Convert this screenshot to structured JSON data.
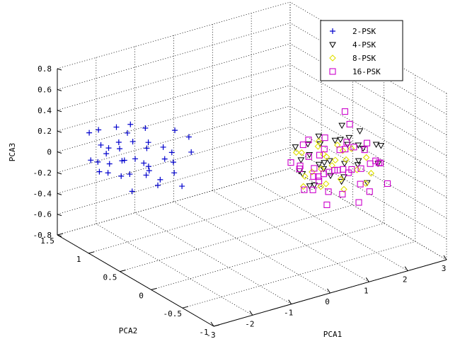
{
  "chart_data": {
    "type": "scatter",
    "projection": "3d",
    "title": "",
    "xlabel": "PCA1",
    "ylabel": "PCA2",
    "zlabel": "PCA3",
    "xlim": [
      -3,
      3
    ],
    "ylim": [
      -1,
      1.5
    ],
    "zlim": [
      -0.8,
      0.8
    ],
    "xticks": [
      "-3",
      "-2",
      "-1",
      "0",
      "1",
      "2",
      "3"
    ],
    "yticks": [
      "-1",
      "-0.5",
      "0",
      "0.5",
      "1",
      "1.5"
    ],
    "zticks": [
      "-0.8",
      "-0.6",
      "-0.4",
      "-0.2",
      "0",
      "0.2",
      "0.4",
      "0.6",
      "0.8"
    ],
    "grid": true,
    "legend_position": "top-right",
    "series": [
      {
        "name": "2-PSK",
        "marker": "plus",
        "color": "#0000cc",
        "points": [
          [
            -2.2,
            1.3,
            0.05
          ],
          [
            -2.0,
            1.3,
            0.0
          ],
          [
            -2.3,
            1.1,
            -0.05
          ],
          [
            -1.9,
            1.2,
            0.08
          ],
          [
            -2.1,
            0.9,
            -0.1
          ],
          [
            -1.8,
            1.0,
            -0.02
          ],
          [
            -2.4,
            1.2,
            -0.15
          ],
          [
            -2.2,
            1.0,
            0.12
          ],
          [
            -2.0,
            1.1,
            -0.2
          ],
          [
            -1.7,
            1.1,
            0.1
          ],
          [
            -2.5,
            1.0,
            -0.08
          ],
          [
            -1.9,
            0.8,
            0.02
          ],
          [
            -2.1,
            1.4,
            0.15
          ],
          [
            -1.6,
            0.9,
            -0.12
          ],
          [
            -2.3,
            0.9,
            0.05
          ],
          [
            -1.8,
            1.3,
            0.18
          ],
          [
            -2.0,
            0.7,
            -0.05
          ],
          [
            -1.5,
            1.0,
            0.05
          ],
          [
            -2.6,
            1.1,
            0.0
          ],
          [
            -1.7,
            0.7,
            -0.18
          ],
          [
            -1.4,
            0.8,
            0.12
          ],
          [
            -2.2,
            0.8,
            -0.22
          ],
          [
            -1.9,
            1.4,
            -0.1
          ],
          [
            -2.4,
            0.8,
            0.1
          ],
          [
            -1.6,
            1.2,
            0.22
          ],
          [
            -1.3,
            0.7,
            0.0
          ],
          [
            -2.1,
            0.6,
            0.08
          ],
          [
            -1.8,
            0.6,
            -0.08
          ],
          [
            -1.5,
            0.6,
            0.15
          ],
          [
            -2.5,
            1.3,
            0.2
          ],
          [
            -1.2,
            0.9,
            -0.05
          ],
          [
            -1.4,
            0.5,
            -0.15
          ],
          [
            -1.0,
            0.6,
            0.1
          ],
          [
            -1.1,
            0.8,
            0.25
          ],
          [
            -2.3,
            1.4,
            -0.12
          ],
          [
            -1.7,
            0.9,
            0.3
          ],
          [
            -0.9,
            0.7,
            0.2
          ],
          [
            -1.3,
            1.1,
            0.05
          ],
          [
            -2.0,
            1.0,
            0.25
          ],
          [
            -1.6,
            0.5,
            0.0
          ]
        ]
      },
      {
        "name": "4-PSK",
        "marker": "triangle-down",
        "color": "#000000",
        "points": [
          [
            1.0,
            -0.2,
            0.05
          ],
          [
            1.3,
            -0.1,
            0.0
          ],
          [
            1.6,
            0.0,
            -0.05
          ],
          [
            1.9,
            0.1,
            0.08
          ],
          [
            2.2,
            0.2,
            0.02
          ],
          [
            2.5,
            0.1,
            -0.03
          ],
          [
            0.8,
            -0.4,
            0.1
          ],
          [
            1.5,
            -0.3,
            0.04
          ],
          [
            2.0,
            -0.2,
            -0.06
          ],
          [
            1.2,
            0.1,
            0.12
          ],
          [
            1.8,
            0.3,
            0.06
          ],
          [
            2.4,
            0.3,
            0.1
          ],
          [
            0.6,
            -0.3,
            -0.08
          ],
          [
            1.1,
            -0.5,
            -0.02
          ],
          [
            1.7,
            -0.4,
            0.08
          ],
          [
            2.3,
            -0.1,
            0.03
          ],
          [
            0.9,
            0.0,
            -0.1
          ],
          [
            1.4,
            0.2,
            -0.04
          ],
          [
            2.1,
            0.0,
            0.12
          ],
          [
            2.7,
            0.2,
            0.05
          ],
          [
            0.4,
            -0.5,
            0.02
          ],
          [
            1.0,
            -0.6,
            0.07
          ],
          [
            1.6,
            -0.6,
            -0.05
          ],
          [
            2.2,
            -0.4,
            0.0
          ],
          [
            2.6,
            -0.2,
            0.06
          ],
          [
            0.7,
            -0.1,
            0.09
          ],
          [
            1.3,
            -0.2,
            -0.09
          ],
          [
            1.9,
            -0.1,
            0.11
          ],
          [
            2.8,
            0.0,
            -0.02
          ],
          [
            0.5,
            -0.2,
            0.04
          ],
          [
            2.0,
            0.4,
            -0.07
          ],
          [
            1.2,
            0.3,
            0.02
          ]
        ]
      },
      {
        "name": "8-PSK",
        "marker": "diamond",
        "color": "#e0e000",
        "points": [
          [
            0.9,
            -0.3,
            0.05
          ],
          [
            1.2,
            -0.2,
            0.1
          ],
          [
            1.5,
            -0.1,
            -0.05
          ],
          [
            1.8,
            0.0,
            0.08
          ],
          [
            0.7,
            -0.5,
            0.0
          ],
          [
            1.1,
            -0.4,
            0.15
          ],
          [
            1.4,
            -0.3,
            -0.1
          ],
          [
            1.7,
            -0.2,
            0.02
          ],
          [
            2.0,
            -0.1,
            0.06
          ],
          [
            0.8,
            -0.1,
            -0.08
          ],
          [
            1.3,
            0.0,
            0.12
          ],
          [
            1.6,
            0.1,
            -0.02
          ],
          [
            0.5,
            -0.4,
            0.1
          ],
          [
            1.0,
            -0.6,
            -0.05
          ],
          [
            1.5,
            -0.5,
            0.05
          ],
          [
            1.9,
            -0.4,
            0.09
          ],
          [
            1.2,
            0.2,
            0.0
          ],
          [
            0.6,
            -0.2,
            -0.12
          ],
          [
            1.7,
            -0.6,
            0.03
          ],
          [
            2.1,
            0.1,
            -0.04
          ],
          [
            0.9,
            0.1,
            0.07
          ],
          [
            1.4,
            -0.7,
            0.0
          ],
          [
            0.4,
            -0.6,
            0.04
          ],
          [
            1.8,
            0.3,
            0.01
          ]
        ]
      },
      {
        "name": "16-PSK",
        "marker": "square",
        "color": "#cc00cc",
        "points": [
          [
            0.8,
            -0.4,
            0.05
          ],
          [
            1.1,
            -0.3,
            0.0
          ],
          [
            1.4,
            -0.2,
            -0.05
          ],
          [
            1.7,
            -0.1,
            0.08
          ],
          [
            2.0,
            0.0,
            0.02
          ],
          [
            0.6,
            -0.6,
            -0.03
          ],
          [
            1.0,
            -0.5,
            0.1
          ],
          [
            1.3,
            -0.4,
            0.04
          ],
          [
            1.6,
            -0.3,
            -0.06
          ],
          [
            1.9,
            -0.2,
            0.12
          ],
          [
            0.5,
            -0.2,
            0.06
          ],
          [
            0.9,
            -0.1,
            0.1
          ],
          [
            1.2,
            0.0,
            -0.08
          ],
          [
            1.5,
            0.1,
            -0.02
          ],
          [
            1.8,
            0.2,
            0.08
          ],
          [
            2.2,
            0.1,
            0.03
          ],
          [
            0.4,
            -0.7,
            -0.1
          ],
          [
            0.8,
            -0.7,
            -0.04
          ],
          [
            1.2,
            -0.6,
            0.12
          ],
          [
            1.6,
            -0.5,
            0.05
          ],
          [
            2.0,
            -0.4,
            0.02
          ],
          [
            2.4,
            -0.1,
            0.07
          ],
          [
            0.3,
            -0.4,
            -0.05
          ],
          [
            0.7,
            -0.3,
            0.0
          ],
          [
            1.1,
            -0.8,
            0.06
          ],
          [
            1.5,
            -0.7,
            -0.09
          ],
          [
            1.9,
            -0.6,
            0.11
          ],
          [
            2.3,
            -0.3,
            -0.02
          ],
          [
            0.6,
            0.0,
            0.04
          ],
          [
            1.0,
            0.1,
            -0.07
          ],
          [
            1.4,
            0.3,
            0.02
          ],
          [
            2.6,
            0.3,
            0.09
          ],
          [
            0.2,
            -0.6,
            0.03
          ],
          [
            0.9,
            -0.9,
            -0.06
          ],
          [
            1.3,
            -0.1,
            0.13
          ],
          [
            1.7,
            0.4,
            0.0
          ],
          [
            2.1,
            -0.5,
            0.05
          ],
          [
            2.5,
            0.0,
            -0.04
          ],
          [
            0.5,
            -0.5,
            0.09
          ],
          [
            1.8,
            -0.8,
            -0.01
          ],
          [
            1.0,
            -0.2,
            -0.11
          ],
          [
            2.8,
            0.5,
            0.12
          ]
        ]
      }
    ]
  }
}
